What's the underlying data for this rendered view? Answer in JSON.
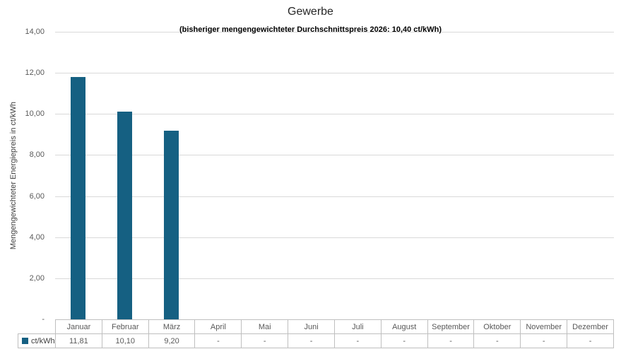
{
  "chart_data": {
    "type": "bar",
    "title": "Gewerbe",
    "subtitle": "(bisheriger mengengewichteter Durchschnittspreis 2026: 10,40 ct/kWh)",
    "ylabel": "Mengengewichteter Energiepreis in ct/kWh",
    "xlabel": "",
    "categories": [
      "Januar",
      "Februar",
      "März",
      "April",
      "Mai",
      "Juni",
      "Juli",
      "August",
      "September",
      "Oktober",
      "November",
      "Dezember"
    ],
    "series": [
      {
        "name": "ct/kWh",
        "values": [
          11.81,
          10.1,
          9.2,
          null,
          null,
          null,
          null,
          null,
          null,
          null,
          null,
          null
        ],
        "display_values": [
          "11,81",
          "10,10",
          "9,20",
          "-",
          "-",
          "-",
          "-",
          "-",
          "-",
          "-",
          "-",
          "-"
        ]
      }
    ],
    "ylim": [
      0,
      14
    ],
    "ytick_labels": [
      "14,00",
      "12,00",
      "10,00",
      "8,00",
      "6,00",
      "4,00",
      "2,00",
      "-"
    ],
    "grid": true,
    "legend_position": "table-left",
    "colors": {
      "bar": "#156082",
      "gridline": "#d9d9d9",
      "table_border": "#bfbfbf",
      "tick_text": "#595959",
      "title_text": "#262626"
    }
  }
}
